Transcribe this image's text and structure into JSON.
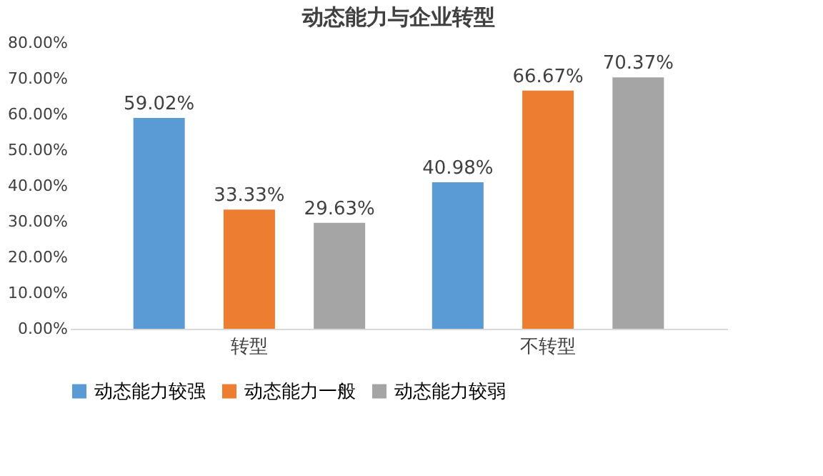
{
  "chart_data": {
    "type": "bar",
    "title": "动态能力与企业转型",
    "categories": [
      "转型",
      "不转型"
    ],
    "series": [
      {
        "name": "动态能力较强",
        "color": "#5b9bd5",
        "values": [
          59.02,
          40.98
        ],
        "value_labels": [
          "59.02%",
          "40.98%"
        ]
      },
      {
        "name": "动态能力一般",
        "color": "#ed7d31",
        "values": [
          33.33,
          66.67
        ],
        "value_labels": [
          "33.33%",
          "66.67%"
        ]
      },
      {
        "name": "动态能力较弱",
        "color": "#a5a5a5",
        "values": [
          29.63,
          70.37
        ],
        "value_labels": [
          "29.63%",
          "70.37%"
        ]
      }
    ],
    "ylim": [
      0,
      80
    ],
    "yticks": [
      {
        "value": 0,
        "label": "0.00%"
      },
      {
        "value": 10,
        "label": "10.00%"
      },
      {
        "value": 20,
        "label": "20.00%"
      },
      {
        "value": 30,
        "label": "30.00%"
      },
      {
        "value": 40,
        "label": "40.00%"
      },
      {
        "value": 50,
        "label": "50.00%"
      },
      {
        "value": 60,
        "label": "60.00%"
      },
      {
        "value": 70,
        "label": "70.00%"
      },
      {
        "value": 80,
        "label": "80.00%"
      }
    ],
    "grid": false,
    "legend": "bottom"
  }
}
